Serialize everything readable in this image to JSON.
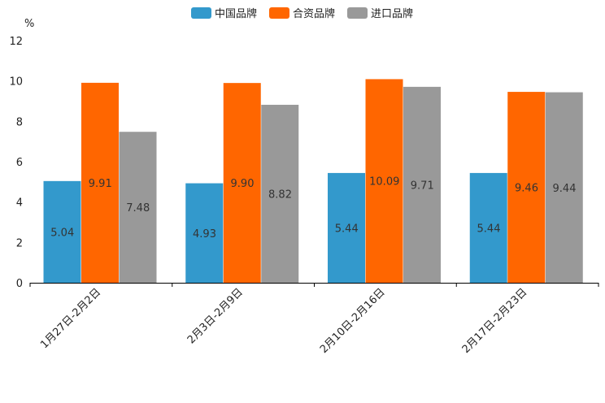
{
  "chart_data": {
    "type": "bar",
    "ylabel": "%",
    "ylim": [
      0,
      12
    ],
    "yticks": [
      0,
      2,
      4,
      6,
      8,
      10,
      12
    ],
    "categories": [
      "1月27日-2月2日",
      "2月3日-2月9日",
      "2月10日-2月16日",
      "2月17日-2月23日"
    ],
    "series": [
      {
        "name": "中国品牌",
        "color": "#3399cc",
        "values": [
          5.04,
          4.93,
          5.44,
          5.44
        ],
        "labels": [
          "5.04",
          "4.93",
          "5.44",
          "5.44"
        ]
      },
      {
        "name": "合资品牌",
        "color": "#ff6600",
        "values": [
          9.91,
          9.9,
          10.09,
          9.46
        ],
        "labels": [
          "9.91",
          "9.90",
          "10.09",
          "9.46"
        ]
      },
      {
        "name": "进口品牌",
        "color": "#999999",
        "values": [
          7.48,
          8.82,
          9.71,
          9.44
        ],
        "labels": [
          "7.48",
          "8.82",
          "9.71",
          "9.44"
        ]
      }
    ],
    "legend_position": "top-center",
    "grid": false
  }
}
